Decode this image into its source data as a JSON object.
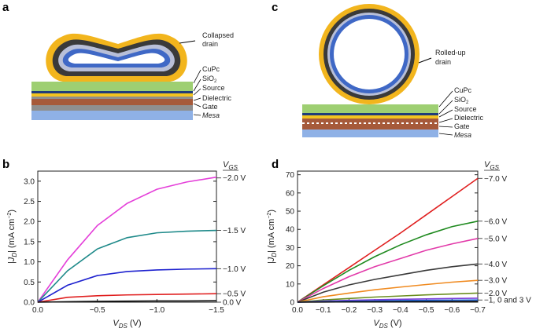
{
  "panels": {
    "a": {
      "letter": "a",
      "callout_drain_1": "Collapsed",
      "callout_drain_2": "drain",
      "layers": [
        "CuPc",
        "SiO2",
        "Source",
        "Dielectric",
        "Gate",
        "Mesa"
      ]
    },
    "c": {
      "letter": "c",
      "callout_drain_1": "Rolled-up",
      "callout_drain_2": "drain",
      "layers": [
        "CuPc",
        "SiO2",
        "Source",
        "Dielectric",
        "Gate",
        "Mesa"
      ]
    }
  },
  "colors": {
    "gold": "#f2b51d",
    "dark_ring": "#3a3a3a",
    "light_ring": "#b8bfd8",
    "blue_ring": "#3f68c6",
    "green": "#9ecf72",
    "darkblue": "#1f3d7a",
    "yellow": "#f3c41f",
    "brown": "#a65a3a",
    "gray": "#8f8f8f",
    "mesa": "#8fb1e6"
  },
  "chart_data": [
    {
      "panel": "b",
      "type": "line",
      "xlabel_main": "V",
      "xlabel_sub": "DS",
      "xlabel_unit": " (V)",
      "ylabel": "|J_D| (mA cm^-2)",
      "legend_title_main": "V",
      "legend_title_sub": "GS",
      "xlim": [
        0.0,
        -1.5
      ],
      "ylim": [
        0.0,
        3.25
      ],
      "xticks": [
        "0.0",
        "−0.5",
        "−1.0",
        "−1.5"
      ],
      "yticks": [
        "0.0",
        "0.5",
        "1.0",
        "1.5",
        "2.0",
        "2.5",
        "3.0"
      ],
      "series": [
        {
          "name": "−2.0 V",
          "color": "#e43fd9",
          "end": 3.1,
          "shape": 0.55,
          "x": [
            0,
            -0.25,
            -0.5,
            -0.75,
            -1.0,
            -1.25,
            -1.5
          ],
          "y": [
            0,
            1.05,
            1.9,
            2.45,
            2.8,
            2.98,
            3.1
          ]
        },
        {
          "name": "−1.5 V",
          "color": "#1f8a8a",
          "x": [
            0,
            -0.25,
            -0.5,
            -0.75,
            -1.0,
            -1.25,
            -1.5
          ],
          "y": [
            0,
            0.78,
            1.32,
            1.6,
            1.72,
            1.76,
            1.78
          ]
        },
        {
          "name": "−1.0 V",
          "color": "#1e22cf",
          "x": [
            0,
            -0.25,
            -0.5,
            -0.75,
            -1.0,
            -1.25,
            -1.5
          ],
          "y": [
            0,
            0.42,
            0.66,
            0.76,
            0.8,
            0.82,
            0.83
          ]
        },
        {
          "name": "−0.5 V",
          "color": "#e01f1f",
          "x": [
            0,
            -0.25,
            -0.5,
            -0.75,
            -1.0,
            -1.25,
            -1.5
          ],
          "y": [
            0,
            0.12,
            0.16,
            0.18,
            0.19,
            0.2,
            0.21
          ]
        },
        {
          "name": "0.0 V",
          "color": "#111111",
          "x": [
            0,
            -0.25,
            -0.5,
            -0.75,
            -1.0,
            -1.25,
            -1.5
          ],
          "y": [
            0,
            0.01,
            0.02,
            0.025,
            0.03,
            0.03,
            0.035
          ]
        }
      ],
      "legend_y": [
        3.08,
        1.78,
        0.83,
        0.21,
        0.0
      ]
    },
    {
      "panel": "d",
      "type": "line",
      "xlabel_main": "V",
      "xlabel_sub": "DS",
      "xlabel_unit": " (V)",
      "ylabel": "|J_D| (mA cm^-2)",
      "legend_title_main": "V",
      "legend_title_sub": "GS",
      "xlim": [
        0.0,
        -0.7
      ],
      "ylim": [
        0,
        72
      ],
      "xticks": [
        "0.0",
        "−0.1",
        "−0.2",
        "−0.3",
        "−0.4",
        "−0.5",
        "−0.6",
        "−0.7"
      ],
      "yticks": [
        "0",
        "10",
        "20",
        "30",
        "40",
        "50",
        "60",
        "70"
      ],
      "series": [
        {
          "name": "−7.0 V",
          "color": "#e01f1f",
          "x": [
            0,
            -0.1,
            -0.2,
            -0.3,
            -0.4,
            -0.5,
            -0.6,
            -0.7
          ],
          "y": [
            0,
            9.5,
            19,
            28.5,
            38,
            48,
            58,
            68
          ]
        },
        {
          "name": "−6.0 V",
          "color": "#1f8a1f",
          "x": [
            0,
            -0.1,
            -0.2,
            -0.3,
            -0.4,
            -0.5,
            -0.6,
            -0.7
          ],
          "y": [
            0,
            9,
            17.5,
            25,
            31.5,
            37,
            41.5,
            44.5
          ]
        },
        {
          "name": "−5.0 V",
          "color": "#e23aa9",
          "x": [
            0,
            -0.1,
            -0.2,
            -0.3,
            -0.4,
            -0.5,
            -0.6,
            -0.7
          ],
          "y": [
            0,
            7.5,
            14,
            19.5,
            24,
            28.5,
            32,
            35
          ]
        },
        {
          "name": "−4.0 V",
          "color": "#3a3a3a",
          "x": [
            0,
            -0.1,
            -0.2,
            -0.3,
            -0.4,
            -0.5,
            -0.6,
            -0.7
          ],
          "y": [
            0,
            5.5,
            9.5,
            12.5,
            15,
            17.5,
            19.5,
            21
          ]
        },
        {
          "name": "−3.0 V",
          "color": "#f08a1f",
          "x": [
            0,
            -0.1,
            -0.2,
            -0.3,
            -0.4,
            -0.5,
            -0.6,
            -0.7
          ],
          "y": [
            0,
            3,
            5,
            6.8,
            8.3,
            9.7,
            11,
            12
          ]
        },
        {
          "name": "−2.0 V",
          "color": "#6b8f1f",
          "x": [
            0,
            -0.1,
            -0.2,
            -0.3,
            -0.4,
            -0.5,
            -0.6,
            -0.7
          ],
          "y": [
            0,
            1.2,
            2,
            2.8,
            3.4,
            4,
            4.5,
            5
          ]
        },
        {
          "name": "−1, 0 and 3 V",
          "color": "#7a3fd9",
          "x": [
            0,
            -0.1,
            -0.2,
            -0.3,
            -0.4,
            -0.5,
            -0.6,
            -0.7
          ],
          "y": [
            0,
            0.6,
            1,
            1.3,
            1.6,
            1.8,
            2,
            2.2
          ]
        },
        {
          "name": "",
          "color": "#1e66d9",
          "x": [
            0,
            -0.1,
            -0.2,
            -0.3,
            -0.4,
            -0.5,
            -0.6,
            -0.7
          ],
          "y": [
            0,
            0.3,
            0.5,
            0.7,
            0.9,
            1.0,
            1.1,
            1.2
          ]
        },
        {
          "name": "",
          "color": "#111111",
          "x": [
            0,
            -0.1,
            -0.2,
            -0.3,
            -0.4,
            -0.5,
            -0.6,
            -0.7
          ],
          "y": [
            0,
            0.1,
            0.2,
            0.25,
            0.3,
            0.35,
            0.4,
            0.45
          ]
        }
      ],
      "legend_y": [
        68,
        44.5,
        35,
        21,
        12,
        5,
        1.2
      ]
    }
  ]
}
